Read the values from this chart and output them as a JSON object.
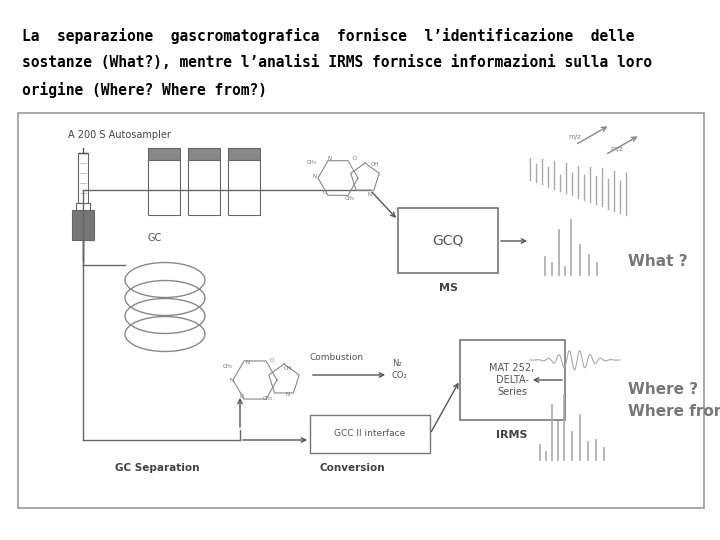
{
  "title_line1": "La  separazione  gascromatografica  fornisce  l’identificazione  delle",
  "title_line2": "sostanze (What?), mentre l’analisi IRMS fornisce informazioni sulla loro",
  "title_line3": "origine (Where? Where from?)",
  "title_fontsize": 10.5,
  "title_font": "monospace",
  "title_color": "#000000",
  "bg_color": "#ffffff",
  "gray_dark": "#555555",
  "gray_mid": "#888888",
  "gray_light": "#aaaaaa",
  "box_fill": "#ffffff",
  "vial_fill": "#999999",
  "injector_fill": "#555555"
}
